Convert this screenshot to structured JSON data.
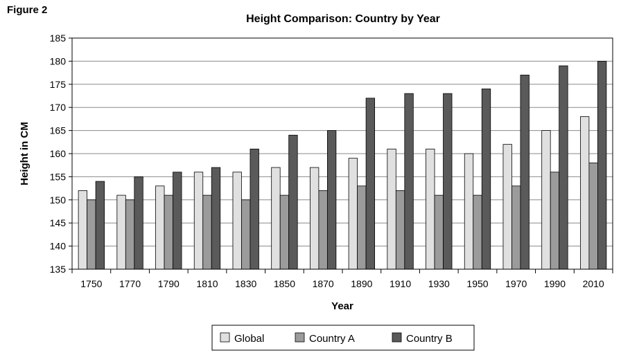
{
  "figure_label": "Figure 2",
  "chart_data": {
    "type": "bar",
    "title": "Height Comparison: Country by Year",
    "xlabel": "Year",
    "ylabel": "Height in CM",
    "ylim": [
      135,
      185
    ],
    "yticks": [
      135,
      140,
      145,
      150,
      155,
      160,
      165,
      170,
      175,
      180,
      185
    ],
    "grid": true,
    "legend_position": "bottom",
    "categories": [
      "1750",
      "1770",
      "1790",
      "1810",
      "1830",
      "1850",
      "1870",
      "1890",
      "1910",
      "1930",
      "1950",
      "1970",
      "1990",
      "2010"
    ],
    "series": [
      {
        "name": "Global",
        "color": "#e0e0e0",
        "values": [
          152,
          151,
          153,
          156,
          156,
          157,
          157,
          159,
          161,
          161,
          160,
          162,
          165,
          168
        ]
      },
      {
        "name": "Country A",
        "color": "#9b9b9b",
        "values": [
          150,
          150,
          151,
          151,
          150,
          151,
          152,
          153,
          152,
          151,
          151,
          153,
          156,
          158
        ]
      },
      {
        "name": "Country B",
        "color": "#5a5a5a",
        "values": [
          154,
          155,
          156,
          157,
          161,
          164,
          165,
          172,
          173,
          173,
          174,
          177,
          179,
          180
        ]
      }
    ]
  }
}
